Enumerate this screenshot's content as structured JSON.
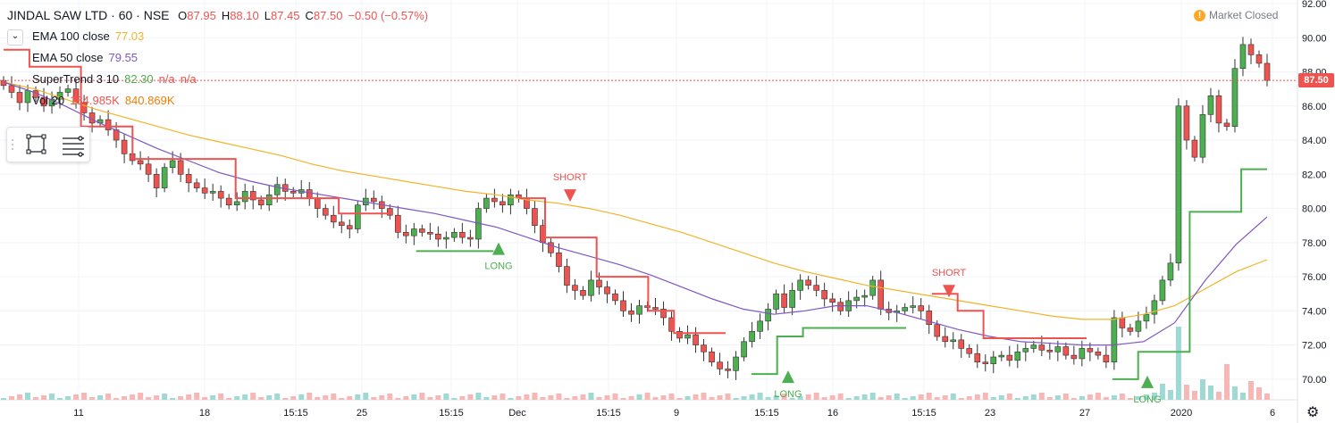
{
  "header": {
    "symbol": "JINDAL SAW LTD · 60 · NSE",
    "ohlc": [
      {
        "label": "O",
        "value": "87.95"
      },
      {
        "label": "H",
        "value": "88.10"
      },
      {
        "label": "L",
        "value": "87.45"
      },
      {
        "label": "C",
        "value": "87.50"
      },
      {
        "label": "",
        "value": "−0.50 (−0.57%)"
      }
    ]
  },
  "market_status": {
    "text": "Market Closed",
    "icon": "!"
  },
  "indicators": [
    {
      "name": "EMA 100 close",
      "values": [
        "77.03"
      ],
      "colors": [
        "#f0b429"
      ]
    },
    {
      "name": "EMA 50 close",
      "values": [
        "79.55"
      ],
      "colors": [
        "#7e57c2"
      ]
    },
    {
      "name": "SuperTrend 3 10",
      "values": [
        "82.30",
        "n/a",
        "n/a"
      ],
      "colors": [
        "#4caf50",
        "#ef5350",
        "#ef5350"
      ]
    },
    {
      "name": "Vol 20",
      "values": [
        "184.985K",
        "840.869K"
      ],
      "colors": [
        "#ef5350",
        "#f57c00"
      ]
    }
  ],
  "colors": {
    "up": "#26a69a",
    "up_body": "#4caf50",
    "down": "#ef5350",
    "ema100": "#f0b429",
    "ema50": "#7e57c2",
    "st_up": "#4caf50",
    "st_down": "#ef5350",
    "grid": "#f0f3fa",
    "text": "#131722",
    "muted": "#787b86"
  },
  "icons": {
    "drawing_tools": [
      "rectangle-icon",
      "lines-icon"
    ],
    "settings": "gear-icon",
    "collapse": "chevron-down-icon"
  },
  "last_price_label": "87.50",
  "chart_data": {
    "type": "candlestick",
    "title": "JINDAL SAW LTD · 60 · NSE",
    "ylim": [
      69,
      92
    ],
    "yticks": [
      "92.00",
      "90.00",
      "88.00",
      "86.00",
      "84.00",
      "82.00",
      "80.00",
      "78.00",
      "76.00",
      "74.00",
      "72.00",
      "70.00"
    ],
    "xticks": [
      "11",
      "18",
      "15:15",
      "25",
      "15:15",
      "Dec",
      "15:15",
      "9",
      "15:15",
      "16",
      "15:15",
      "23",
      "27",
      "2020",
      "6"
    ],
    "last_price": 87.5,
    "signals": [
      {
        "type": "LONG",
        "price": 77.8
      },
      {
        "type": "SHORT",
        "price": 80.6
      },
      {
        "type": "LONG",
        "price": 70.3
      },
      {
        "type": "SHORT",
        "price": 75.0
      },
      {
        "type": "LONG",
        "price": 70.0
      }
    ],
    "close_series": [
      87.2,
      86.8,
      86.2,
      86.9,
      86.5,
      86.0,
      86.4,
      86.8,
      87.0,
      86.2,
      85.6,
      85.0,
      85.2,
      84.6,
      84.0,
      83.2,
      82.8,
      82.6,
      82.0,
      81.2,
      82.4,
      82.8,
      82.0,
      81.5,
      81.2,
      80.9,
      81.0,
      80.6,
      80.2,
      80.4,
      81.0,
      80.5,
      80.2,
      80.8,
      81.4,
      81.0,
      80.9,
      81.1,
      80.6,
      80.0,
      79.6,
      79.2,
      79.0,
      78.8,
      80.2,
      80.6,
      80.4,
      80.0,
      79.6,
      78.6,
      78.4,
      78.8,
      78.6,
      78.5,
      78.2,
      78.3,
      78.6,
      78.3,
      78.2,
      80.0,
      80.6,
      80.4,
      80.2,
      80.8,
      80.6,
      80.0,
      79.0,
      78.0,
      77.4,
      76.6,
      75.5,
      75.2,
      74.9,
      75.8,
      75.4,
      75.0,
      74.6,
      74.0,
      73.8,
      74.3,
      74.2,
      74.1,
      73.6,
      72.8,
      72.4,
      72.6,
      72.0,
      71.6,
      71.0,
      70.6,
      70.5,
      71.3,
      72.2,
      72.8,
      73.4,
      74.1,
      75.0,
      74.2,
      75.2,
      75.8,
      75.5,
      75.2,
      74.7,
      74.5,
      74.0,
      74.6,
      74.8,
      74.9,
      75.8,
      74.1,
      73.9,
      74.0,
      74.2,
      74.3,
      74.0,
      73.2,
      72.5,
      72.2,
      72.3,
      71.8,
      71.5,
      71.0,
      70.9,
      71.3,
      71.4,
      71.1,
      71.6,
      71.8,
      72.0,
      71.7,
      71.6,
      71.9,
      71.4,
      71.2,
      71.8,
      71.6,
      71.4,
      71.0,
      73.6,
      73.0,
      72.8,
      73.4,
      73.8,
      74.6,
      75.8,
      76.8,
      86.0,
      84.0,
      83.0,
      85.5,
      86.6,
      85.0,
      84.8,
      88.2,
      89.6,
      89.0,
      88.5,
      87.5
    ],
    "ema100_series": [
      87.4,
      87.0,
      86.4,
      85.8,
      85.3,
      84.8,
      84.3,
      83.9,
      83.5,
      83.1,
      82.6,
      82.2,
      81.9,
      81.6,
      81.3,
      81.0,
      80.8,
      80.5,
      80.3,
      80.0,
      79.6,
      79.1,
      78.6,
      78.0,
      77.4,
      76.8,
      76.3,
      75.9,
      75.5,
      75.2,
      74.9,
      74.6,
      74.3,
      74.0,
      73.7,
      73.5,
      73.5,
      73.8,
      74.3,
      75.3,
      76.3,
      77.0
    ],
    "ema50_series": [
      87.4,
      86.8,
      86.0,
      85.1,
      84.3,
      83.5,
      82.8,
      82.1,
      81.6,
      81.2,
      80.9,
      80.6,
      80.3,
      80.0,
      79.7,
      79.3,
      78.9,
      78.3,
      77.7,
      77.2,
      76.7,
      76.1,
      75.4,
      74.7,
      74.1,
      73.8,
      74.0,
      74.3,
      74.3,
      73.9,
      73.4,
      72.9,
      72.5,
      72.2,
      72.1,
      72.0,
      72.0,
      72.2,
      73.3,
      75.8,
      77.9,
      79.5
    ],
    "supertrend_series": [
      {
        "dir": "down",
        "values": [
          89.3,
          88.3,
          88.3,
          84.8,
          84.8,
          82.9,
          82.9,
          82.9,
          82.9,
          80.6,
          80.6,
          80.6,
          80.6,
          79.7,
          79.7,
          79.7
        ]
      },
      {
        "dir": "up",
        "values": [
          77.5,
          77.5,
          77.5,
          77.5
        ]
      },
      {
        "dir": "down",
        "values": [
          80.6,
          78.3,
          78.3,
          76.0,
          76.0,
          74.0,
          72.7,
          72.7,
          72.7
        ]
      },
      {
        "dir": "up",
        "values": [
          70.3,
          72.5,
          73.0,
          73.0,
          73.0,
          73.0,
          73.0
        ]
      },
      {
        "dir": "down",
        "values": [
          75.0,
          74.0,
          72.4,
          72.4,
          72.4,
          72.4,
          72.4
        ]
      },
      {
        "dir": "up",
        "values": [
          70.0,
          71.6,
          71.6,
          79.8,
          79.8,
          82.3,
          82.3
        ]
      }
    ]
  }
}
